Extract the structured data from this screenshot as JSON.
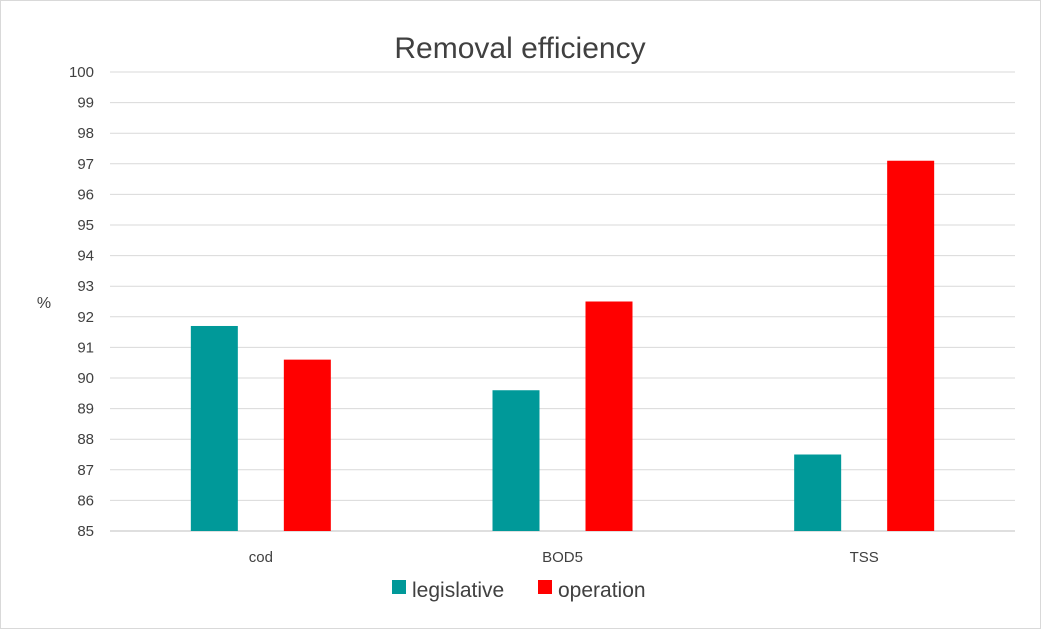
{
  "chart_data": {
    "type": "bar",
    "title": "Removal efficiency",
    "xlabel": "",
    "ylabel": "%",
    "categories": [
      "cod",
      "BOD5",
      "TSS"
    ],
    "series": [
      {
        "name": "legislative",
        "color": "#009999",
        "values": [
          91.7,
          89.6,
          87.5
        ]
      },
      {
        "name": "operation",
        "color": "#ff0000",
        "values": [
          90.6,
          92.5,
          97.1
        ]
      }
    ],
    "ylim": [
      85,
      100
    ],
    "yticks": [
      "85",
      "86",
      "87",
      "88",
      "89",
      "90",
      "91",
      "92",
      "93",
      "94",
      "95",
      "96",
      "97",
      "98",
      "99",
      "100"
    ],
    "grid": true,
    "legend_position": "bottom"
  }
}
